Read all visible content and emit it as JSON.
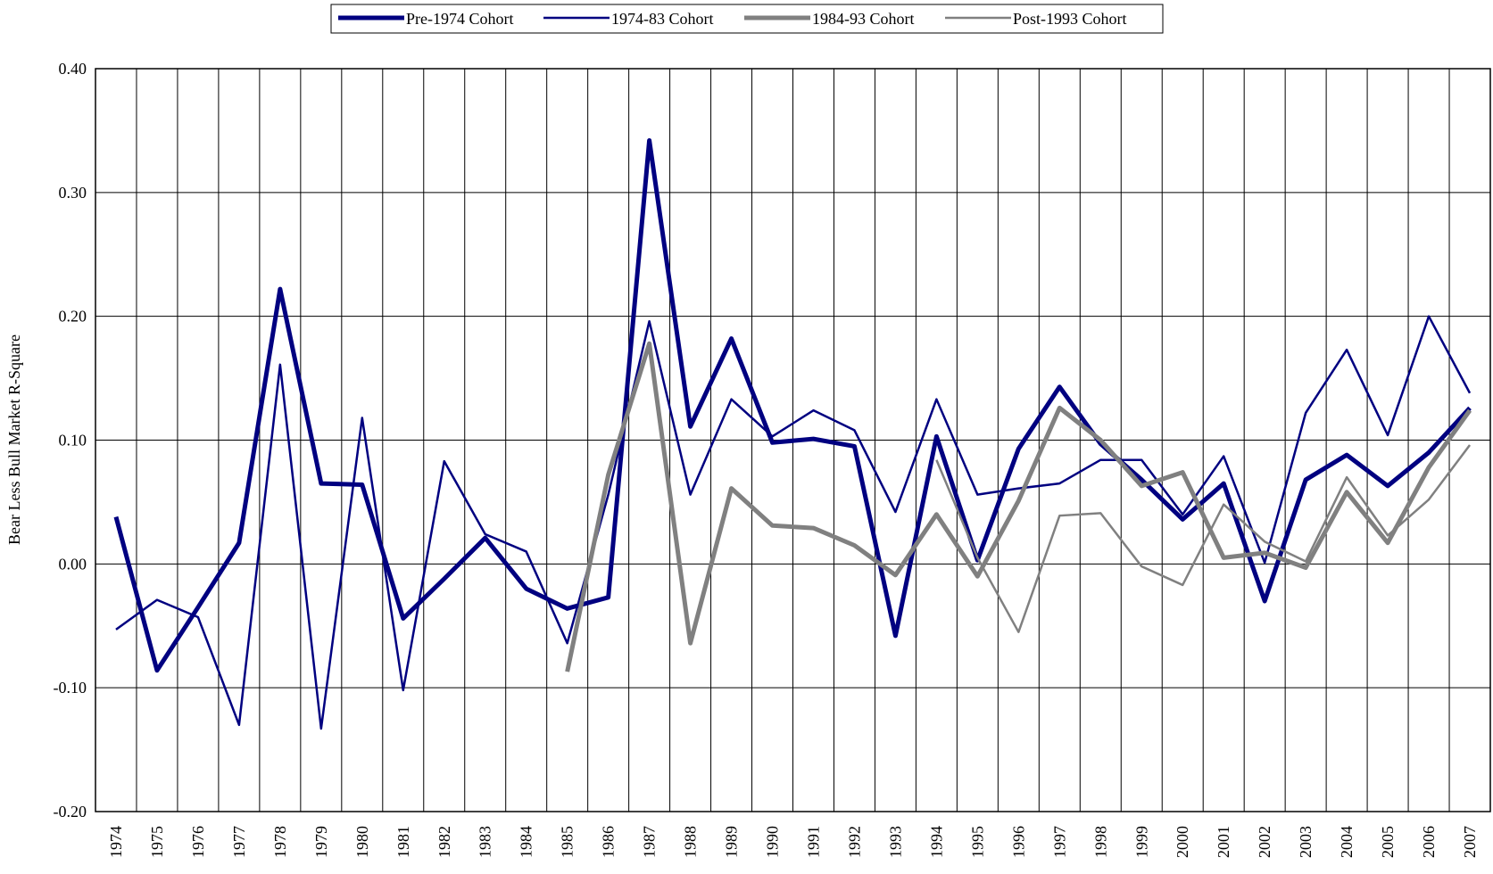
{
  "chart_data": {
    "type": "line",
    "y_label": "Bear Less Bull Market R-Square",
    "categories": [
      "1974",
      "1975",
      "1976",
      "1977",
      "1978",
      "1979",
      "1980",
      "1981",
      "1982",
      "1983",
      "1984",
      "1985",
      "1986",
      "1987",
      "1988",
      "1989",
      "1990",
      "1991",
      "1992",
      "1993",
      "1994",
      "1995",
      "1996",
      "1997",
      "1998",
      "1999",
      "2000",
      "2001",
      "2002",
      "2003",
      "2004",
      "2005",
      "2006",
      "2007"
    ],
    "series": [
      {
        "name": "Pre-1974 Cohort",
        "color": "#000080",
        "width": 5,
        "values": [
          0.038,
          -0.086,
          -0.035,
          0.017,
          0.222,
          0.065,
          0.064,
          -0.044,
          -0.012,
          0.021,
          -0.02,
          -0.036,
          -0.027,
          0.342,
          0.111,
          0.182,
          0.098,
          0.101,
          0.095,
          -0.058,
          0.103,
          0.003,
          0.093,
          0.143,
          0.097,
          0.068,
          0.036,
          0.065,
          -0.03,
          0.068,
          0.088,
          0.063,
          0.09,
          0.126
        ]
      },
      {
        "name": "1974-83 Cohort",
        "color": "#000080",
        "width": 2.5,
        "values": [
          -0.053,
          -0.029,
          -0.043,
          -0.13,
          0.161,
          -0.133,
          0.118,
          -0.102,
          0.083,
          0.024,
          0.01,
          -0.064,
          0.056,
          0.196,
          0.056,
          0.133,
          0.103,
          0.124,
          0.108,
          0.042,
          0.133,
          0.056,
          0.061,
          0.065,
          0.084,
          0.084,
          0.04,
          0.087,
          0.001,
          0.122,
          0.173,
          0.104,
          0.2,
          0.138
        ]
      },
      {
        "name": "1984-93 Cohort",
        "color": "#808080",
        "width": 5,
        "values": [
          null,
          null,
          null,
          null,
          null,
          null,
          null,
          null,
          null,
          null,
          null,
          -0.087,
          0.072,
          0.178,
          -0.064,
          0.061,
          0.031,
          0.029,
          0.015,
          -0.009,
          0.04,
          -0.01,
          0.051,
          0.126,
          0.1,
          0.063,
          0.074,
          0.005,
          0.009,
          -0.003,
          0.058,
          0.017,
          0.078,
          0.124
        ]
      },
      {
        "name": "Post-1993 Cohort",
        "color": "#808080",
        "width": 2.5,
        "values": [
          null,
          null,
          null,
          null,
          null,
          null,
          null,
          null,
          null,
          null,
          null,
          null,
          null,
          null,
          null,
          null,
          null,
          null,
          null,
          null,
          0.084,
          0.005,
          -0.055,
          0.039,
          0.041,
          -0.002,
          -0.017,
          0.048,
          0.018,
          0.002,
          0.07,
          0.023,
          0.052,
          0.096
        ]
      }
    ],
    "ylim": [
      -0.2,
      0.4
    ],
    "yticks": [
      {
        "value": -0.2,
        "label": "-0.20"
      },
      {
        "value": -0.1,
        "label": "-0.10"
      },
      {
        "value": 0,
        "label": "0.00"
      },
      {
        "value": 0.1,
        "label": "0.10"
      },
      {
        "value": 0.2,
        "label": "0.20"
      },
      {
        "value": 0.3,
        "label": "0.30"
      },
      {
        "value": 0.4,
        "label": "0.40"
      }
    ],
    "grid": true,
    "legend": "top"
  }
}
